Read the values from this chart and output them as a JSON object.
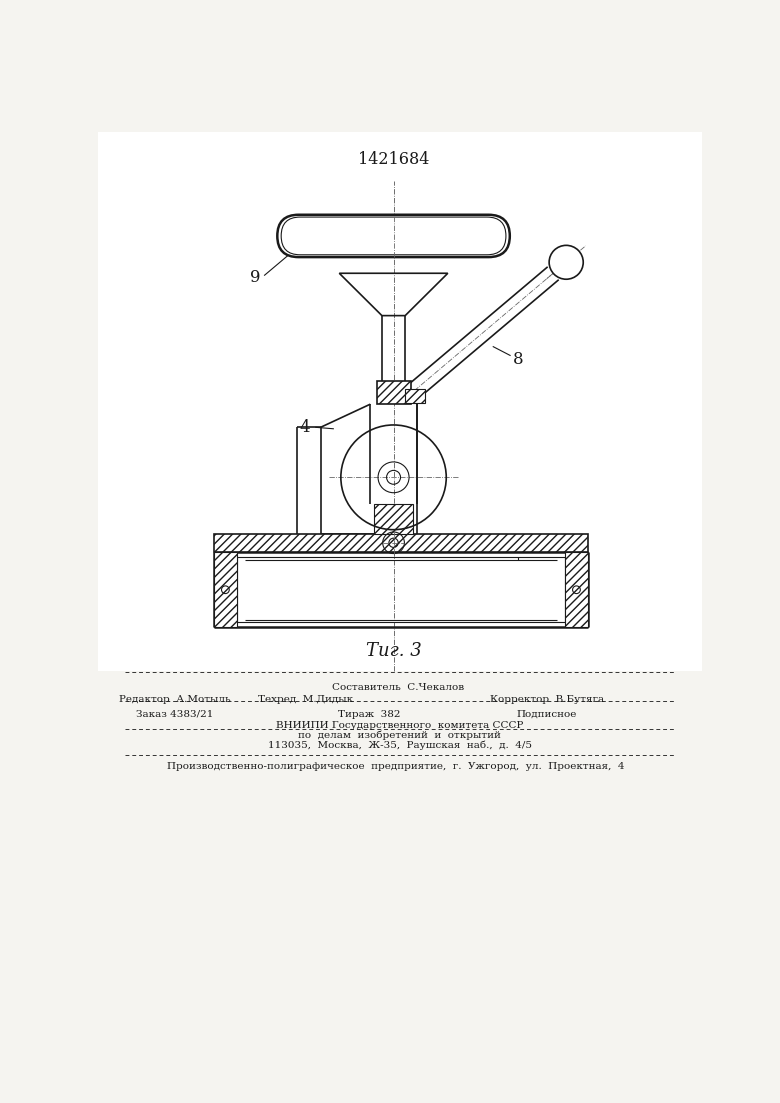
{
  "title_number": "1421684",
  "fig_label": "Τиг. 3",
  "label_9": "9",
  "label_4": "4",
  "label_8": "8",
  "bg_color": "#f5f4f0",
  "line_color": "#1a1a1a",
  "footer_sestavitel": "Составитель  С.Чекалов",
  "footer_redaktor": "Редактор  А.Мотыль",
  "footer_tehred": "Техред  М.Дидык",
  "footer_korrektor": "Корректор  В.Бутяга",
  "footer_zakaz": "Заказ 4383/21",
  "footer_tirazh": "Тираж  382",
  "footer_podpisnoe": "Подписное",
  "footer_vniipи": "ВНИИПИ Государственного  комитета СССР",
  "footer_po_delam": "по  делам  изобретений  и  открытий",
  "footer_addr": "113035,  Москва,  Ж-35,  Раушская  наб.,  д.  4/5",
  "footer_proizv": "Производственно-полиграфическое  предприятие,  г.  Ужгород,  ул.  Проектная,  4"
}
